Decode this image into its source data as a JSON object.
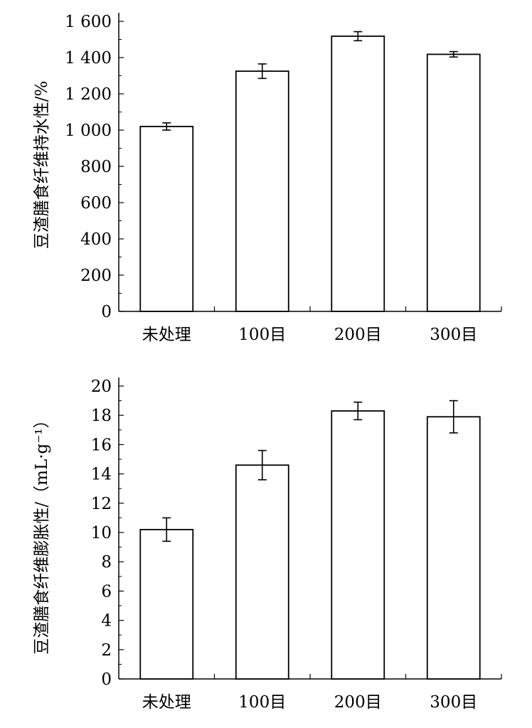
{
  "chart_data": [
    {
      "type": "bar",
      "title": "",
      "xlabel": "",
      "ylabel": "豆渣膳食纤维持水性/%",
      "categories": [
        "未处理",
        "100目",
        "200目",
        "300目"
      ],
      "values": [
        1020,
        1325,
        1518,
        1418
      ],
      "errors": [
        20,
        40,
        25,
        15
      ],
      "ylim": [
        0,
        1600
      ],
      "yticks": [
        0,
        200,
        400,
        600,
        800,
        1000,
        1200,
        1400,
        1600
      ],
      "ytick_labels": [
        "0",
        "200",
        "400",
        "600",
        "800",
        "1 000",
        "1 200",
        "1 400",
        "1 600"
      ],
      "bar_color": "#ffffff",
      "edge_color": "#000000"
    },
    {
      "type": "bar",
      "title": "",
      "xlabel": "",
      "ylabel": "豆渣膳食纤维膨胀性/（mL·g⁻¹）",
      "categories": [
        "未处理",
        "100目",
        "200目",
        "300目"
      ],
      "values": [
        10.2,
        14.6,
        18.3,
        17.9
      ],
      "errors": [
        0.8,
        1.0,
        0.6,
        1.1
      ],
      "ylim": [
        0,
        20
      ],
      "yticks": [
        0,
        2,
        4,
        6,
        8,
        10,
        12,
        14,
        16,
        18,
        20
      ],
      "ytick_labels": [
        "0",
        "2",
        "4",
        "6",
        "8",
        "10",
        "12",
        "14",
        "16",
        "18",
        "20"
      ],
      "bar_color": "#ffffff",
      "edge_color": "#000000"
    }
  ]
}
